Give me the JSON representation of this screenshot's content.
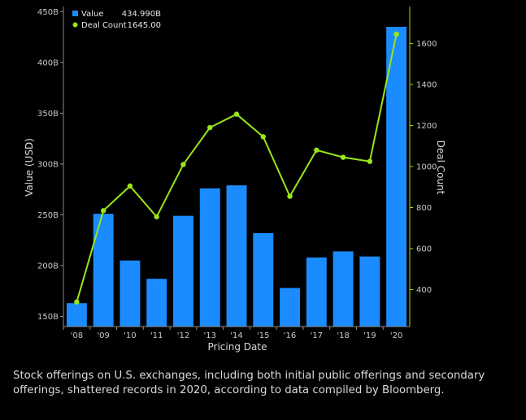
{
  "chart_data": {
    "type": "bar",
    "categories": [
      "'08",
      "'09",
      "'10",
      "'11",
      "'12",
      "'13",
      "'14",
      "'15",
      "'16",
      "'17",
      "'18",
      "'19",
      "'20"
    ],
    "series": [
      {
        "name": "Value",
        "type": "bar",
        "axis": "left",
        "color": "#1a8cff",
        "values": [
          163,
          251,
          205,
          187,
          249,
          276,
          279,
          232,
          178,
          208,
          214,
          209,
          434.99
        ]
      },
      {
        "name": "Deal Count",
        "type": "line",
        "axis": "right",
        "color": "#99e619",
        "values": [
          340,
          785,
          905,
          755,
          1010,
          1190,
          1255,
          1145,
          855,
          1080,
          1045,
          1025,
          1645
        ]
      }
    ],
    "xlabel": "Pricing Date",
    "ylabel": "Value (USD)",
    "y2label": "Deal Count",
    "ylim": [
      140,
      455
    ],
    "y2lim": [
      220,
      1780
    ],
    "yticks": [
      150,
      200,
      250,
      300,
      350,
      400,
      450
    ],
    "ytick_labels": [
      "150B",
      "200B",
      "250B",
      "300B",
      "350B",
      "400B",
      "450B"
    ],
    "y2ticks": [
      400,
      600,
      800,
      1000,
      1200,
      1400,
      1600
    ],
    "y2tick_labels": [
      "400",
      "600",
      "800",
      "1000",
      "1200",
      "1400",
      "1600"
    ],
    "legend": [
      {
        "label": "Value",
        "value": "434.990B"
      },
      {
        "label": "Deal Count",
        "value": "1645.00"
      }
    ],
    "legend_position": "top-left"
  },
  "caption": "Stock offerings on U.S. exchanges, including both initial public offerings and secondary offerings, shattered records in 2020, according to data compiled by Bloomberg."
}
